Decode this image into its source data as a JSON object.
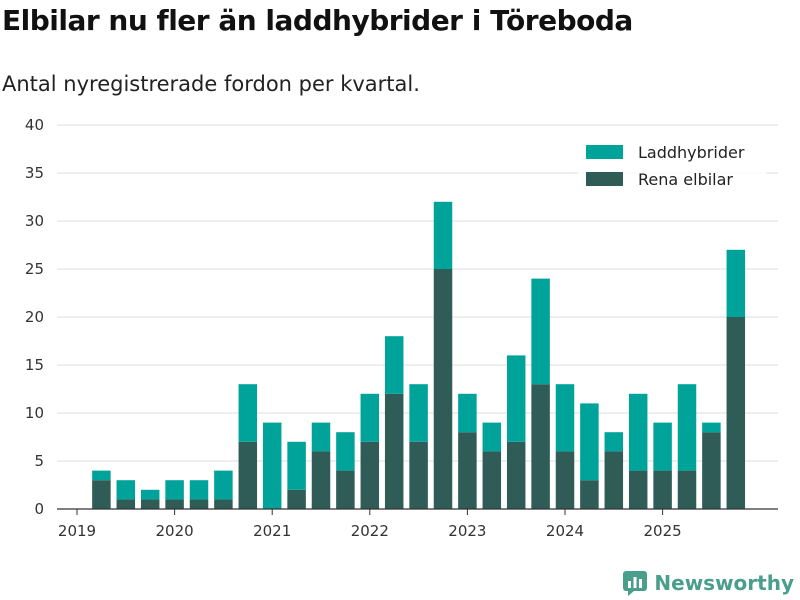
{
  "chart_data": {
    "type": "bar",
    "stacked": true,
    "title": "Elbilar nu fler än laddhybrider i Töreboda",
    "subtitle": "Antal nyregistrerade fordon per kvartal.",
    "xlabel": "",
    "ylabel": "",
    "ylim": [
      0,
      40
    ],
    "yticks": [
      "0",
      "5",
      "10",
      "15",
      "20",
      "25",
      "30",
      "35",
      "40"
    ],
    "xtick_labels": [
      "2019",
      "2020",
      "2021",
      "2022",
      "2023",
      "2024",
      "2025"
    ],
    "categories": [
      "2019 Q2",
      "2019 Q3",
      "2019 Q4",
      "2020 Q1",
      "2020 Q2",
      "2020 Q3",
      "2020 Q4",
      "2021 Q1",
      "2021 Q2",
      "2021 Q3",
      "2021 Q4",
      "2022 Q1",
      "2022 Q2",
      "2022 Q3",
      "2022 Q4",
      "2023 Q1",
      "2023 Q2",
      "2023 Q3",
      "2023 Q4",
      "2024 Q1",
      "2024 Q2",
      "2024 Q3",
      "2024 Q4",
      "2025 Q1",
      "2025 Q2",
      "2025 Q3",
      "2025 Q4"
    ],
    "series": [
      {
        "name": "Rena elbilar",
        "color": "#2f5c57",
        "values": [
          3,
          1,
          1,
          1,
          1,
          1,
          7,
          0,
          2,
          6,
          4,
          7,
          12,
          7,
          25,
          8,
          6,
          7,
          13,
          6,
          3,
          6,
          4,
          4,
          4,
          8,
          20
        ]
      },
      {
        "name": "Laddhybrider",
        "color": "#00a39a",
        "values": [
          1,
          2,
          1,
          2,
          2,
          3,
          6,
          9,
          5,
          3,
          4,
          5,
          6,
          6,
          7,
          4,
          3,
          9,
          11,
          7,
          8,
          2,
          8,
          5,
          9,
          1,
          7
        ]
      }
    ],
    "legend": [
      "Laddhybrider",
      "Rena elbilar"
    ],
    "legend_position": "top-right",
    "grid": true
  },
  "branding": {
    "name": "Newsworthy",
    "color": "#4a9e8c"
  }
}
